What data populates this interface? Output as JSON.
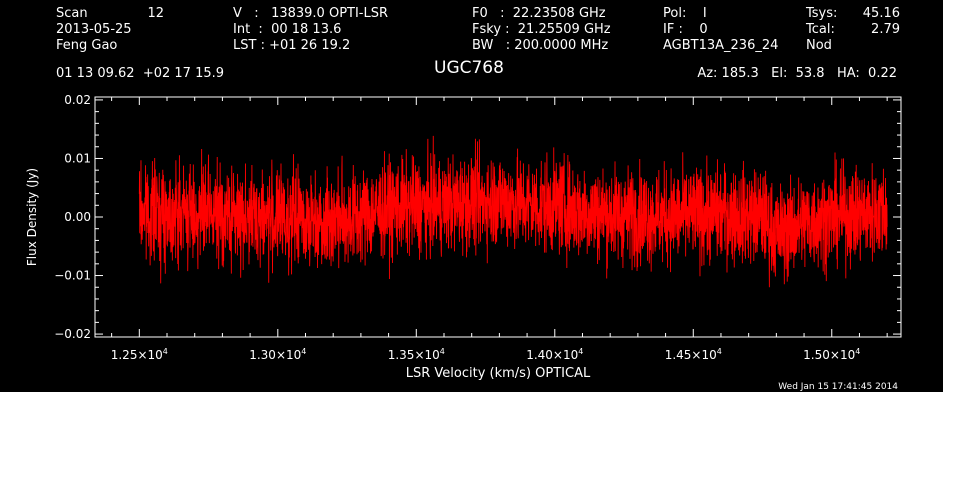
{
  "header": {
    "scan_label": "Scan",
    "scan_value": "12",
    "date": "2013-05-25",
    "observer": "Feng Gao",
    "ra_dec": "01 13 09.62  +02 17 15.9",
    "velocity": "V   :   13839.0 OPTI-LSR",
    "int_time": "Int  :  00 18 13.6",
    "lst": "LST : +01 26 19.2",
    "f0": "F0   :  22.23508 GHz",
    "fsky": "Fsky :  21.25509 GHz",
    "bw": "BW   : 200.0000 MHz",
    "pol": "Pol:    I",
    "if": "IF :    0",
    "project": "AGBT13A_236_24",
    "tsys_label": "Tsys:",
    "tsys_value": "45.16",
    "tcal_label": "Tcal:",
    "tcal_value": "2.79",
    "mode": "Nod",
    "source": "UGC768",
    "pointing": "Az: 185.3   El:  53.8   HA:  0.22",
    "timestamp": "Wed Jan 15 17:41:45 2014"
  },
  "colors": {
    "background": "#000000",
    "axes": "#ffffff",
    "spectrum": "#ff0000"
  },
  "chart_data": {
    "type": "line",
    "title": "UGC768",
    "xlabel": "LSR Velocity (km/s) OPTICAL",
    "ylabel": "Flux Density (Jy)",
    "xlim": [
      12340,
      15250
    ],
    "ylim": [
      -0.0205,
      0.0205
    ],
    "xticks": [
      {
        "value": 12500,
        "mantissa": "1.25",
        "exp": "4"
      },
      {
        "value": 13000,
        "mantissa": "1.30",
        "exp": "4"
      },
      {
        "value": 13500,
        "mantissa": "1.35",
        "exp": "4"
      },
      {
        "value": 14000,
        "mantissa": "1.40",
        "exp": "4"
      },
      {
        "value": 14500,
        "mantissa": "1.45",
        "exp": "4"
      },
      {
        "value": 15000,
        "mantissa": "1.50",
        "exp": "4"
      }
    ],
    "yticks": [
      {
        "value": 0.02,
        "label": "0.02"
      },
      {
        "value": 0.01,
        "label": "0.01"
      },
      {
        "value": 0.0,
        "label": "0.00"
      },
      {
        "value": -0.01,
        "label": "−0.01"
      },
      {
        "value": -0.02,
        "label": "−0.02"
      }
    ],
    "series": [
      {
        "x_range": [
          12500,
          15200
        ],
        "baseline": [
          [
            12500,
            0.001
          ],
          [
            12700,
            0.0005
          ],
          [
            12900,
            0.0
          ],
          [
            13100,
            -0.0005
          ],
          [
            13300,
            0.0
          ],
          [
            13400,
            0.0015
          ],
          [
            13600,
            0.002
          ],
          [
            13700,
            0.0025
          ],
          [
            13800,
            0.003
          ],
          [
            13900,
            0.002
          ],
          [
            14000,
            0.002
          ],
          [
            14100,
            0.001
          ],
          [
            14200,
            0.0005
          ],
          [
            14400,
            0.0
          ],
          [
            14600,
            0.0005
          ],
          [
            14750,
            0.0
          ],
          [
            14800,
            -0.003
          ],
          [
            14900,
            -0.001
          ],
          [
            15000,
            0.0
          ],
          [
            15200,
            0.001
          ]
        ],
        "noise_rms": 0.004,
        "peak_max": 0.0145,
        "peak_min": -0.0165
      }
    ]
  }
}
